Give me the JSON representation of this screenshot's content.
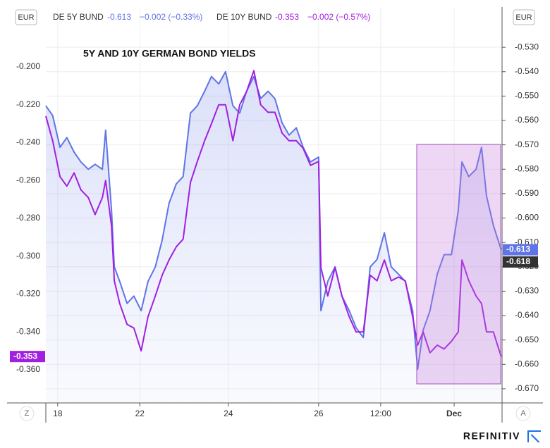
{
  "chart_data": {
    "type": "line",
    "title": "5Y AND 10Y GERMAN BOND YIELDS",
    "currency": "EUR",
    "buttons": [
      "Z",
      "A"
    ],
    "source": "REFINITIV",
    "grid": true,
    "x": [
      0,
      1.5,
      3.1,
      4.6,
      6.2,
      7.7,
      9.3,
      10.8,
      12.4,
      13.1,
      14.4,
      15.0,
      16.2,
      17.8,
      19.3,
      20.9,
      22.4,
      24.0,
      25.5,
      27.0,
      28.6,
      30.1,
      31.7,
      33.2,
      34.8,
      36.3,
      37.9,
      39.4,
      41.0,
      42.5,
      44.0,
      45.6,
      47.1,
      48.7,
      50.2,
      51.8,
      53.3,
      54.9,
      56.4,
      58.0,
      59.8,
      60.3,
      61.8,
      63.4,
      64.9,
      66.5,
      68.0,
      69.6,
      71.1,
      72.6,
      74.2,
      75.7,
      77.3,
      78.8,
      80.4,
      81.5,
      82.7,
      84.2,
      85.8,
      87.3,
      88.9,
      90.4,
      91.2,
      92.7,
      94.3,
      95.5,
      96.6,
      98.1,
      99.8
    ],
    "xlim": [
      0,
      100
    ],
    "xticks": [
      {
        "value": 2.6,
        "label": "18"
      },
      {
        "value": 20.6,
        "label": "22"
      },
      {
        "value": 40.0,
        "label": "24"
      },
      {
        "value": 59.8,
        "label": "26"
      },
      {
        "value": 73.4,
        "label": "12:00"
      },
      {
        "value": 89.5,
        "label": "Dec"
      }
    ],
    "ylim": [
      -0.3775,
      -0.1684
    ],
    "yticks": [
      {
        "value": -0.2,
        "label": "-0.200"
      },
      {
        "value": -0.22,
        "label": "-0.220"
      },
      {
        "value": -0.24,
        "label": "-0.240"
      },
      {
        "value": -0.26,
        "label": "-0.260"
      },
      {
        "value": -0.28,
        "label": "-0.280"
      },
      {
        "value": -0.3,
        "label": "-0.300"
      },
      {
        "value": -0.32,
        "label": "-0.320"
      },
      {
        "value": -0.34,
        "label": "-0.340"
      },
      {
        "value": -0.36,
        "label": "-0.360"
      }
    ],
    "y2lim": [
      -0.6758,
      -0.5135
    ],
    "y2ticks": [
      {
        "value": -0.53,
        "label": "-0.530"
      },
      {
        "value": -0.54,
        "label": "-0.540"
      },
      {
        "value": -0.55,
        "label": "-0.550"
      },
      {
        "value": -0.56,
        "label": "-0.560"
      },
      {
        "value": -0.57,
        "label": "-0.570"
      },
      {
        "value": -0.58,
        "label": "-0.580"
      },
      {
        "value": -0.59,
        "label": "-0.590"
      },
      {
        "value": -0.6,
        "label": "-0.600"
      },
      {
        "value": -0.61,
        "label": "-0.610"
      },
      {
        "value": -0.62,
        "label": "-0.620"
      },
      {
        "value": -0.63,
        "label": "-0.630"
      },
      {
        "value": -0.64,
        "label": "-0.640"
      },
      {
        "value": -0.65,
        "label": "-0.650"
      },
      {
        "value": -0.66,
        "label": "-0.660"
      },
      {
        "value": -0.67,
        "label": "-0.670"
      }
    ],
    "marker_label": {
      "value": -0.618,
      "label": "-0.618"
    },
    "series": [
      {
        "name": "DE 5Y BUND",
        "color": "#5f74e6",
        "axis": "y2",
        "last_label": "-0.613",
        "change": "−0.002 (−0.33%)",
        "values": [
          -0.554,
          -0.558,
          -0.571,
          -0.567,
          -0.573,
          -0.577,
          -0.58,
          -0.578,
          -0.58,
          -0.564,
          -0.597,
          -0.62,
          -0.626,
          -0.635,
          -0.632,
          -0.638,
          -0.626,
          -0.62,
          -0.609,
          -0.594,
          -0.586,
          -0.583,
          -0.557,
          -0.554,
          -0.548,
          -0.542,
          -0.545,
          -0.54,
          -0.554,
          -0.557,
          -0.548,
          -0.542,
          -0.551,
          -0.548,
          -0.551,
          -0.561,
          -0.566,
          -0.563,
          -0.571,
          -0.577,
          -0.575,
          -0.638,
          -0.626,
          -0.62,
          -0.632,
          -0.638,
          -0.645,
          -0.649,
          -0.62,
          -0.617,
          -0.606,
          -0.62,
          -0.623,
          -0.626,
          -0.638,
          -0.662,
          -0.646,
          -0.638,
          -0.623,
          -0.615,
          -0.615,
          -0.597,
          -0.577,
          -0.583,
          -0.58,
          -0.571,
          -0.591,
          -0.603,
          -0.613
        ]
      },
      {
        "name": "DE 10Y BUND",
        "color": "#a11fe0",
        "axis": "y",
        "last_label": "-0.353",
        "change": "−0.002 (−0.57%)",
        "values": [
          -0.226,
          -0.239,
          -0.258,
          -0.263,
          -0.256,
          -0.265,
          -0.269,
          -0.278,
          -0.269,
          -0.26,
          -0.284,
          -0.313,
          -0.325,
          -0.336,
          -0.338,
          -0.35,
          -0.332,
          -0.321,
          -0.31,
          -0.302,
          -0.295,
          -0.291,
          -0.261,
          -0.25,
          -0.239,
          -0.23,
          -0.22,
          -0.22,
          -0.239,
          -0.22,
          -0.213,
          -0.202,
          -0.22,
          -0.224,
          -0.224,
          -0.235,
          -0.239,
          -0.239,
          -0.243,
          -0.252,
          -0.25,
          -0.306,
          -0.321,
          -0.306,
          -0.321,
          -0.332,
          -0.34,
          -0.34,
          -0.31,
          -0.313,
          -0.302,
          -0.313,
          -0.311,
          -0.313,
          -0.332,
          -0.347,
          -0.34,
          -0.351,
          -0.347,
          -0.349,
          -0.345,
          -0.34,
          -0.302,
          -0.313,
          -0.321,
          -0.325,
          -0.34,
          -0.34,
          -0.353
        ]
      }
    ]
  }
}
